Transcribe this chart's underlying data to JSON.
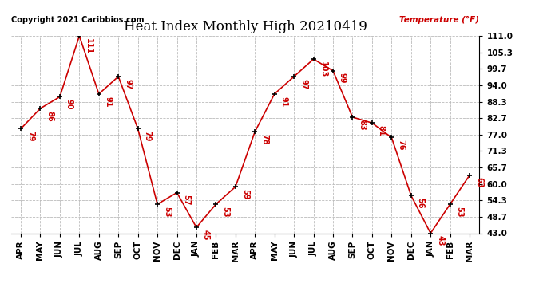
{
  "title": "Heat Index Monthly High 20210419",
  "ylabel": "Temperature (°F)",
  "copyright": "Copyright 2021 Caribbios.com",
  "x_labels": [
    "APR",
    "MAY",
    "JUN",
    "JUL",
    "AUG",
    "SEP",
    "OCT",
    "NOV",
    "DEC",
    "JAN",
    "FEB",
    "MAR",
    "APR",
    "MAY",
    "JUN",
    "JUL",
    "AUG",
    "SEP",
    "OCT",
    "NOV",
    "DEC",
    "JAN",
    "FEB",
    "MAR"
  ],
  "values": [
    79,
    86,
    90,
    111,
    91,
    97,
    79,
    53,
    57,
    45,
    53,
    59,
    78,
    91,
    97,
    103,
    99,
    83,
    81,
    76,
    56,
    43,
    53,
    63
  ],
  "y_ticks": [
    43.0,
    48.7,
    54.3,
    60.0,
    65.7,
    71.3,
    77.0,
    82.7,
    88.3,
    94.0,
    99.7,
    105.3,
    111.0
  ],
  "line_color": "#cc0000",
  "marker_color": "#000000",
  "bg_color": "#ffffff",
  "grid_color": "#bbbbbb",
  "title_fontsize": 12,
  "label_fontsize": 7.5,
  "annotation_fontsize": 7,
  "copyright_fontsize": 7
}
